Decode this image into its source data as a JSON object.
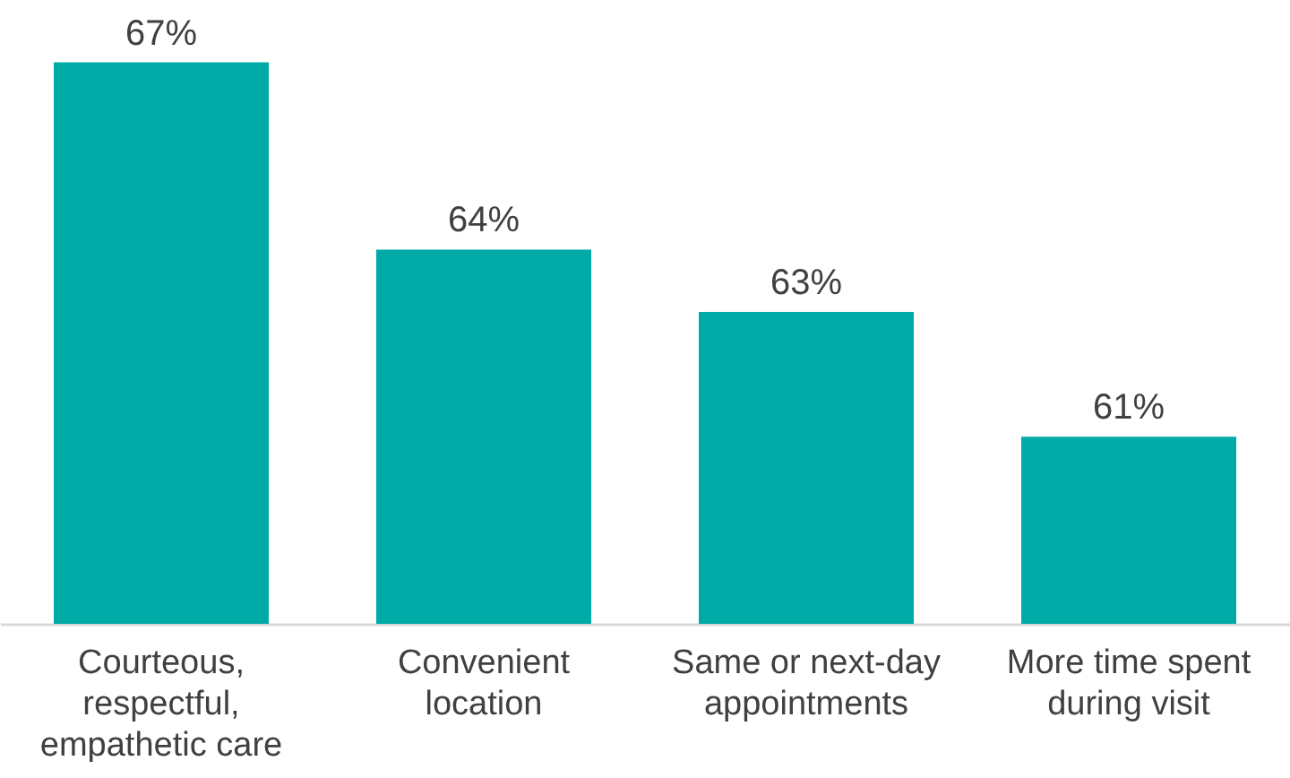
{
  "chart_data": {
    "type": "bar",
    "categories": [
      "Courteous, respectful, empathetic care",
      "Convenient location",
      "Same or next-day appointments",
      "More time spent during visit"
    ],
    "values": [
      67,
      64,
      63,
      61
    ],
    "color": "#00aaa7",
    "value_labels": [
      "67%",
      "64%",
      "63%",
      "61%"
    ],
    "ylim": [
      58,
      68
    ],
    "grid": false
  }
}
